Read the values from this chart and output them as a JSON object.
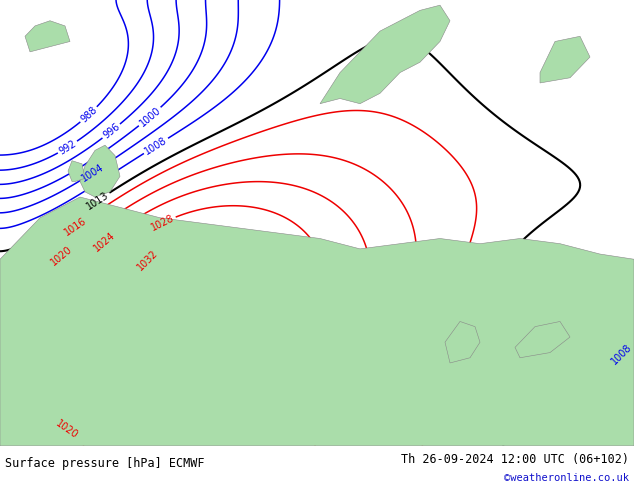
{
  "title_left": "Surface pressure [hPa] ECMWF",
  "title_right": "Th 26-09-2024 12:00 UTC (06+102)",
  "title_right2": "©weatheronline.co.uk",
  "sea_color": "#c8c8c8",
  "land_color": "#aaddaa",
  "blue_color": "#0000ee",
  "red_color": "#ee0000",
  "black_color": "#000000",
  "figsize": [
    6.34,
    4.9
  ],
  "dpi": 100,
  "footer_fontsize": 8.5,
  "footer_fontsize2": 7.5,
  "label_fontsize": 7
}
